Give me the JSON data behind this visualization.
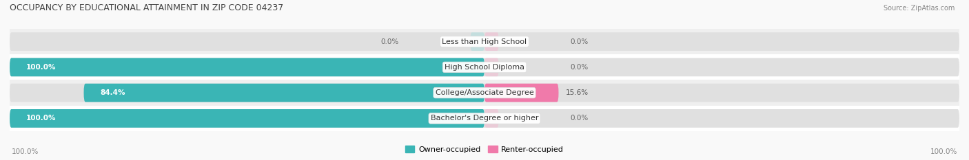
{
  "title": "OCCUPANCY BY EDUCATIONAL ATTAINMENT IN ZIP CODE 04237",
  "source": "Source: ZipAtlas.com",
  "categories": [
    "Less than High School",
    "High School Diploma",
    "College/Associate Degree",
    "Bachelor's Degree or higher"
  ],
  "owner_values": [
    0.0,
    100.0,
    84.4,
    100.0
  ],
  "renter_values": [
    0.0,
    0.0,
    15.6,
    0.0
  ],
  "owner_color": "#3ab5b5",
  "renter_color": "#f07aaa",
  "renter_color_light": "#f5b8d0",
  "owner_color_light": "#a8dede",
  "row_bg_colors": [
    "#efefef",
    "#ffffff",
    "#efefef",
    "#ffffff"
  ],
  "title_color": "#444444",
  "value_label_color_white": "#ffffff",
  "value_label_color_dark": "#666666",
  "legend_owner": "Owner-occupied",
  "legend_renter": "Renter-occupied",
  "left_axis_label": "100.0%",
  "right_axis_label": "100.0%",
  "figsize": [
    14.06,
    2.33
  ],
  "dpi": 100
}
